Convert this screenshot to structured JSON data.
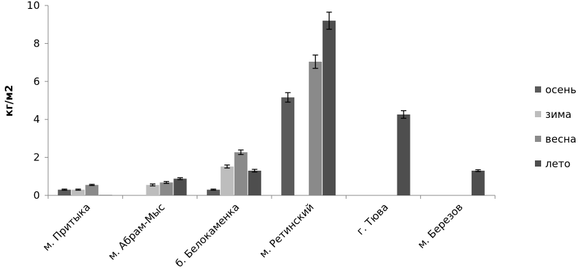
{
  "chart_data": {
    "type": "bar",
    "y_label": "кг/м2",
    "categories": [
      "м. Притыка",
      "м. Абрам-Мыс",
      "б. Белокаменка",
      "м. Ретинский",
      "г. Тюва",
      "м. Березов"
    ],
    "series": [
      {
        "name": "осень",
        "color": "#5a5a5a",
        "values": [
          0.3,
          null,
          0.3,
          5.16,
          null,
          null
        ],
        "errors": [
          0.03,
          null,
          0.03,
          0.25,
          null,
          null
        ]
      },
      {
        "name": "зима",
        "color": "#bdbdbd",
        "values": [
          0.3,
          0.55,
          1.52,
          null,
          null,
          null
        ],
        "errors": [
          0.03,
          0.05,
          0.08,
          null,
          null,
          null
        ]
      },
      {
        "name": "весна",
        "color": "#8a8a8a",
        "values": [
          0.55,
          0.68,
          2.27,
          7.04,
          null,
          null
        ],
        "errors": [
          0.03,
          0.05,
          0.12,
          0.35,
          null,
          null
        ]
      },
      {
        "name": "лето",
        "color": "#4e4e4e",
        "values": [
          0.02,
          0.88,
          1.3,
          9.2,
          4.26,
          1.3
        ],
        "errors": [
          null,
          0.05,
          0.07,
          0.45,
          0.2,
          0.05
        ]
      }
    ],
    "ylim": [
      0,
      10
    ],
    "yticks": [
      0,
      2,
      4,
      6,
      8,
      10
    ],
    "grid": false
  }
}
